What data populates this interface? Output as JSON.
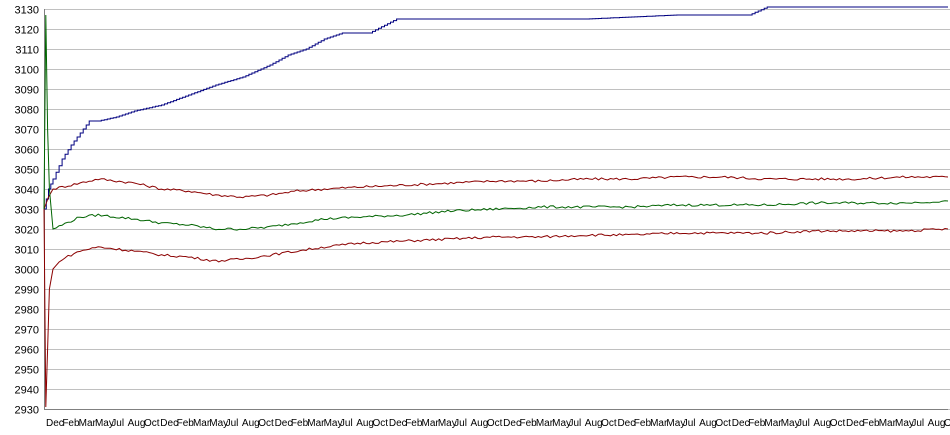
{
  "chart_data": {
    "type": "line",
    "title": "",
    "xlabel": "",
    "ylabel": "",
    "ylim": [
      2930,
      3130
    ],
    "yticks": [
      2930,
      2940,
      2950,
      2960,
      2970,
      2980,
      2990,
      3000,
      3010,
      3020,
      3030,
      3040,
      3050,
      3060,
      3070,
      3080,
      3090,
      3100,
      3110,
      3120,
      3130
    ],
    "grid": true,
    "legend": "none",
    "x_labels": [
      "Dec",
      "Feb",
      "Mar",
      "May",
      "Jul",
      "Aug",
      "Oct",
      "Dec",
      "Feb",
      "Mar",
      "May",
      "Jul",
      "Aug",
      "Oct",
      "Dec",
      "Feb",
      "Mar",
      "May",
      "Jul",
      "Aug",
      "Oct",
      "Dec",
      "Feb",
      "Mar",
      "May",
      "Jul",
      "Aug",
      "Oct",
      "Dec",
      "Feb",
      "Mar",
      "May",
      "Jul",
      "Aug",
      "Oct",
      "Dec",
      "Feb",
      "Mar",
      "May",
      "Jul",
      "Aug",
      "Oct",
      "Dec",
      "Feb",
      "Mar",
      "May",
      "Jul",
      "Aug",
      "Oct",
      "Dec",
      "Feb",
      "Mar",
      "May",
      "Jul",
      "Aug",
      "Oct"
    ],
    "series": [
      {
        "color": "#000080",
        "x": [
          0.0,
          0.005,
          0.01,
          0.02,
          0.03,
          0.04,
          0.05,
          0.06,
          0.08,
          0.1,
          0.13,
          0.16,
          0.19,
          0.22,
          0.25,
          0.27,
          0.29,
          0.31,
          0.33,
          0.36,
          0.39,
          0.42,
          0.45,
          0.5,
          0.6,
          0.7,
          0.78,
          0.8,
          0.85,
          0.9,
          1.0
        ],
        "y": [
          3030,
          3040,
          3045,
          3055,
          3062,
          3068,
          3074,
          3074,
          3076,
          3079,
          3082,
          3087,
          3092,
          3096,
          3102,
          3107,
          3110,
          3115,
          3118,
          3118,
          3125,
          3125,
          3125,
          3125,
          3125,
          3127,
          3127,
          3131,
          3131,
          3131,
          3131
        ]
      },
      {
        "color": "#8B0000",
        "x": [
          0.0,
          0.005,
          0.01,
          0.02,
          0.04,
          0.06,
          0.08,
          0.1,
          0.13,
          0.16,
          0.19,
          0.22,
          0.25,
          0.28,
          0.31,
          0.35,
          0.4,
          0.45,
          0.5,
          0.55,
          0.6,
          0.65,
          0.7,
          0.75,
          0.8,
          0.85,
          0.9,
          0.95,
          1.0
        ],
        "y": [
          3030,
          3036,
          3040,
          3041,
          3043,
          3045,
          3044,
          3043,
          3040,
          3039,
          3037,
          3036,
          3037,
          3039,
          3040,
          3041,
          3042,
          3043,
          3044,
          3044,
          3045,
          3045,
          3046,
          3046,
          3045,
          3045,
          3045,
          3046,
          3046
        ]
      },
      {
        "color": "#006400",
        "x": [
          0.0,
          0.002,
          0.004,
          0.006,
          0.01,
          0.02,
          0.04,
          0.06,
          0.08,
          0.1,
          0.13,
          0.16,
          0.19,
          0.22,
          0.25,
          0.28,
          0.31,
          0.35,
          0.4,
          0.45,
          0.5,
          0.55,
          0.6,
          0.65,
          0.7,
          0.75,
          0.8,
          0.85,
          0.9,
          0.95,
          1.0
        ],
        "y": [
          3030,
          3127,
          3070,
          3040,
          3020,
          3022,
          3026,
          3027,
          3026,
          3025,
          3023,
          3022,
          3020,
          3020,
          3021,
          3023,
          3025,
          3026,
          3027,
          3029,
          3030,
          3031,
          3031,
          3031,
          3032,
          3032,
          3032,
          3033,
          3033,
          3033,
          3034
        ]
      },
      {
        "color": "#8B0000",
        "x": [
          0.0,
          0.002,
          0.004,
          0.006,
          0.01,
          0.02,
          0.04,
          0.06,
          0.08,
          0.1,
          0.13,
          0.16,
          0.19,
          0.22,
          0.25,
          0.28,
          0.31,
          0.35,
          0.4,
          0.45,
          0.5,
          0.55,
          0.6,
          0.65,
          0.7,
          0.75,
          0.8,
          0.85,
          0.9,
          0.95,
          1.0
        ],
        "y": [
          3030,
          2931,
          2960,
          2990,
          3000,
          3005,
          3009,
          3011,
          3010,
          3009,
          3007,
          3006,
          3004,
          3005,
          3007,
          3009,
          3011,
          3013,
          3014,
          3015,
          3016,
          3016,
          3017,
          3017,
          3018,
          3018,
          3018,
          3019,
          3019,
          3019,
          3020
        ]
      }
    ]
  }
}
